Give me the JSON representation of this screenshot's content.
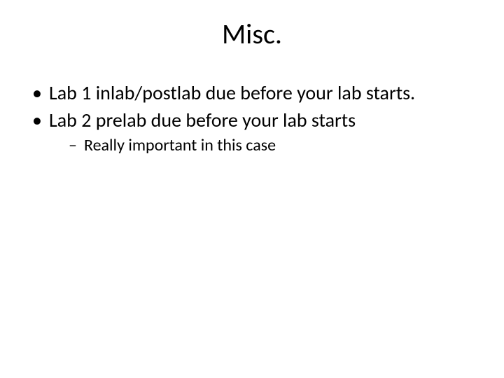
{
  "slide": {
    "title": "Misc.",
    "bullets": [
      {
        "text": "Lab 1 inlab/postlab due before your lab starts."
      },
      {
        "text": "Lab 2 prelab due before your lab starts",
        "sub": [
          {
            "text": "Really important in this case"
          }
        ]
      }
    ]
  },
  "style": {
    "background_color": "#ffffff",
    "text_color": "#000000",
    "title_fontsize": 40,
    "body_fontsize": 28,
    "sub_fontsize": 24,
    "font_family": "Calibri"
  }
}
